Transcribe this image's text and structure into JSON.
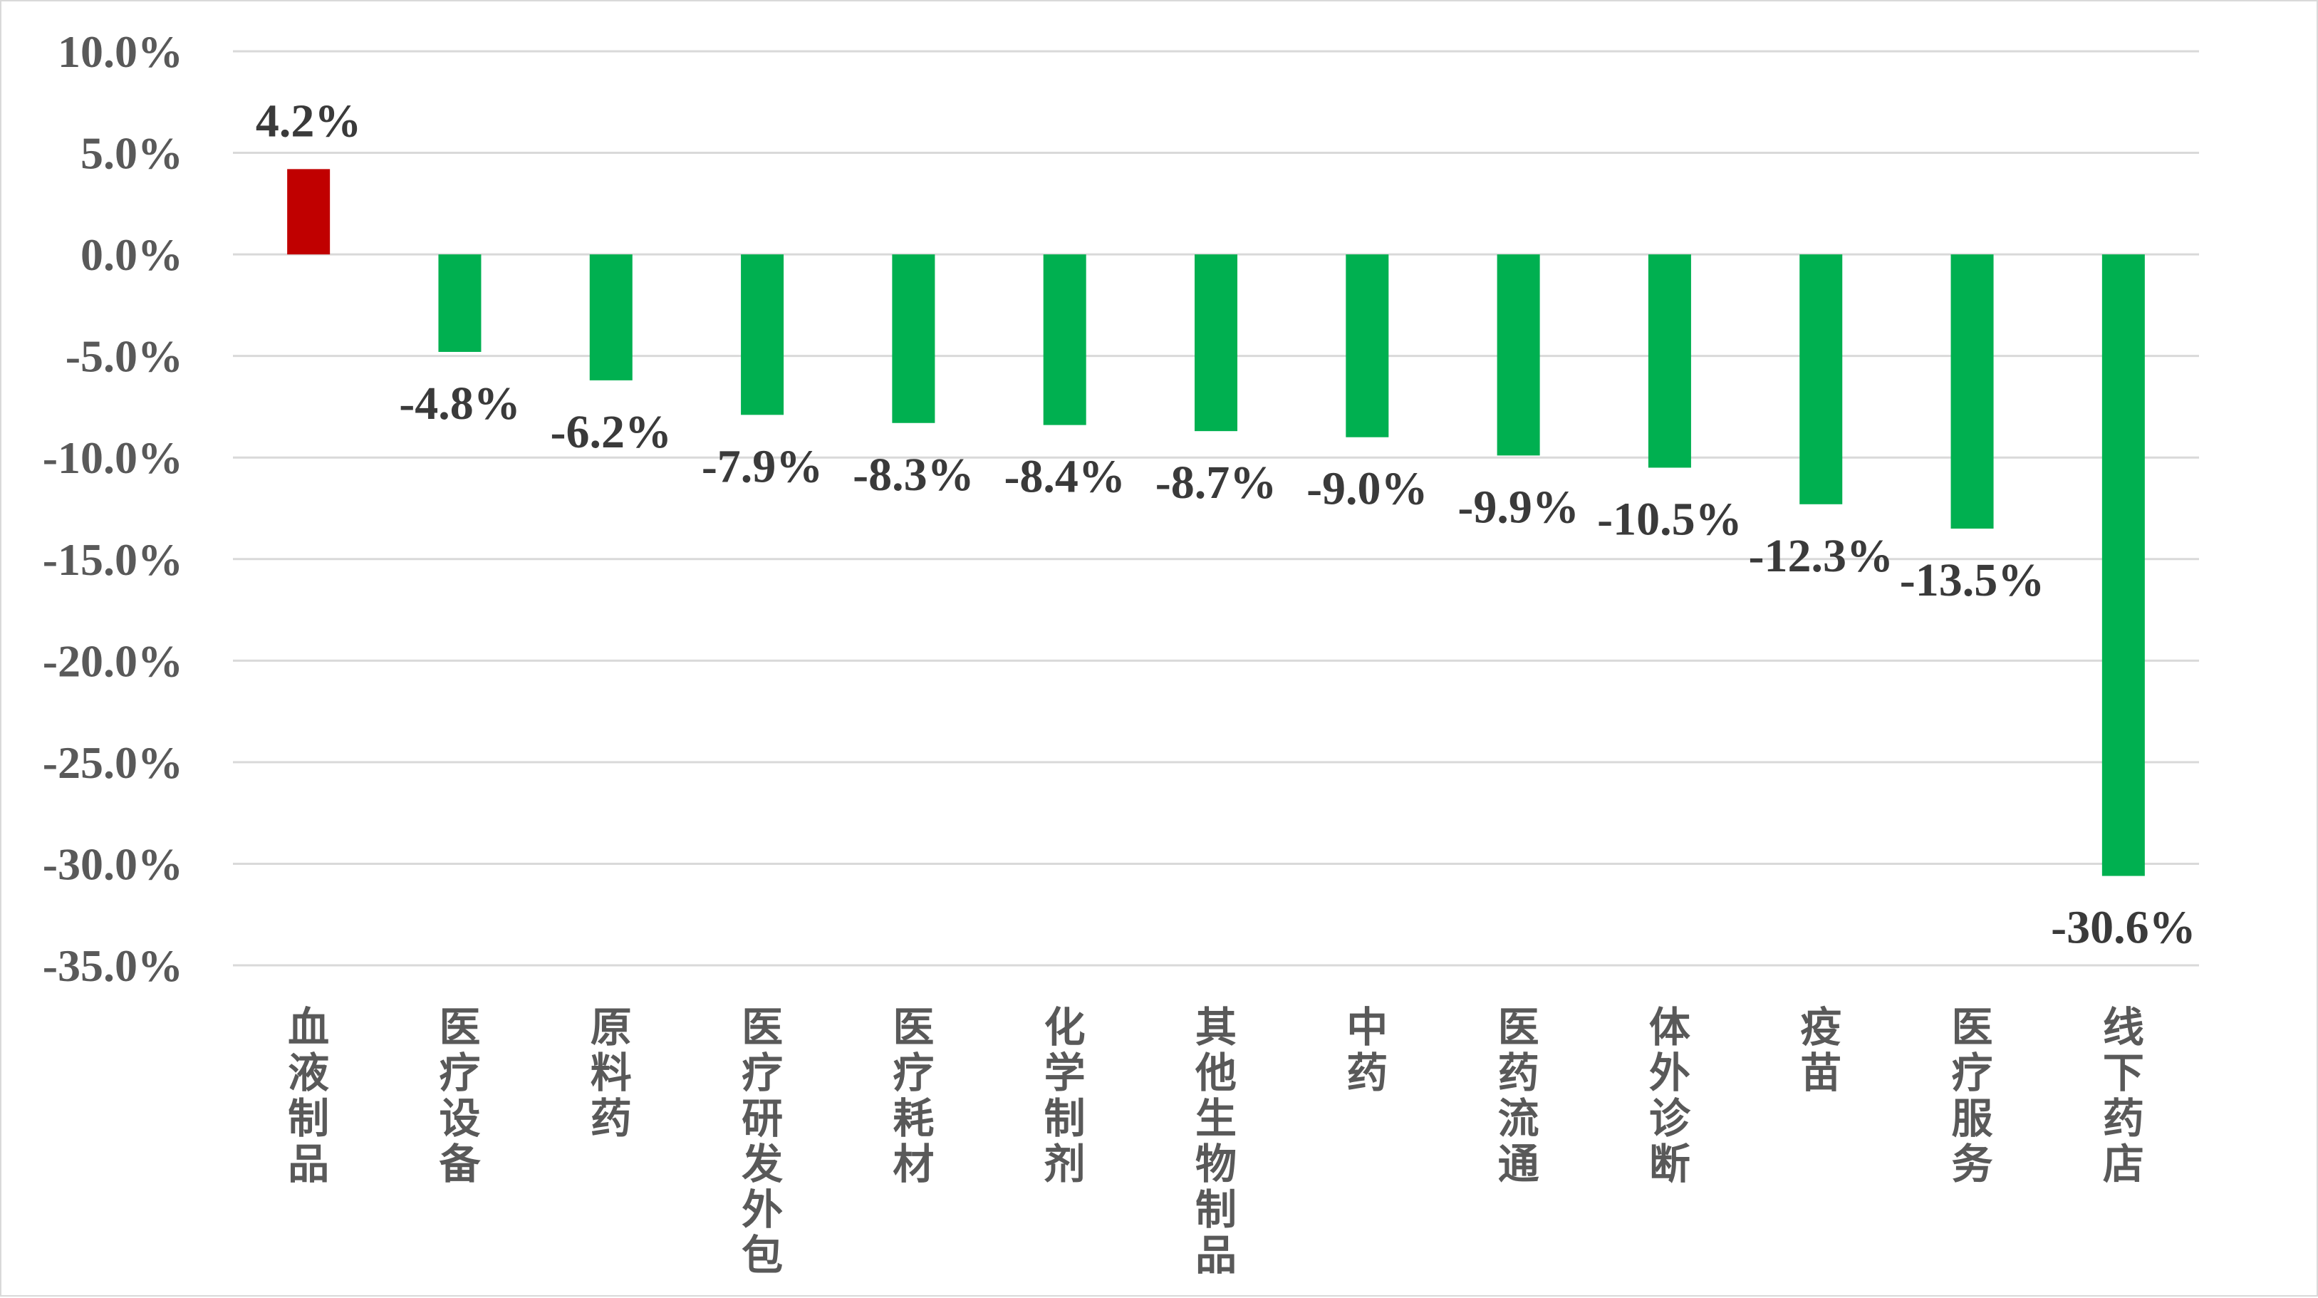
{
  "colors": {
    "positive": "#c00000",
    "negative": "#00b050",
    "grid": "#d9d9d9",
    "text": "#595959"
  },
  "chart_data": {
    "type": "bar",
    "title": "",
    "xlabel": "",
    "ylabel": "",
    "ylim": [
      -35,
      10
    ],
    "yticks": [
      10,
      5,
      0,
      -5,
      -10,
      -15,
      -20,
      -25,
      -30,
      -35
    ],
    "ytick_labels": [
      "10.0%",
      "5.0%",
      "0.0%",
      "-5.0%",
      "-10.0%",
      "-15.0%",
      "-20.0%",
      "-25.0%",
      "-30.0%",
      "-35.0%"
    ],
    "grid": true,
    "legend": "none",
    "categories": [
      "血液制品",
      "医疗设备",
      "原料药",
      "医疗研发外包",
      "医疗耗材",
      "化学制剂",
      "其他生物制品",
      "中药",
      "医药流通",
      "体外诊断",
      "疫苗",
      "医疗服务",
      "线下药店"
    ],
    "values": [
      4.2,
      -4.8,
      -6.2,
      -7.9,
      -8.3,
      -8.4,
      -8.7,
      -9.0,
      -9.9,
      -10.5,
      -12.3,
      -13.5,
      -30.6
    ],
    "data_labels": [
      "4.2%",
      "-4.8%",
      "-6.2%",
      "-7.9%",
      "-8.3%",
      "-8.4%",
      "-8.7%",
      "-9.0%",
      "-9.9%",
      "-10.5%",
      "-12.3%",
      "-13.5%",
      "-30.6%"
    ]
  }
}
